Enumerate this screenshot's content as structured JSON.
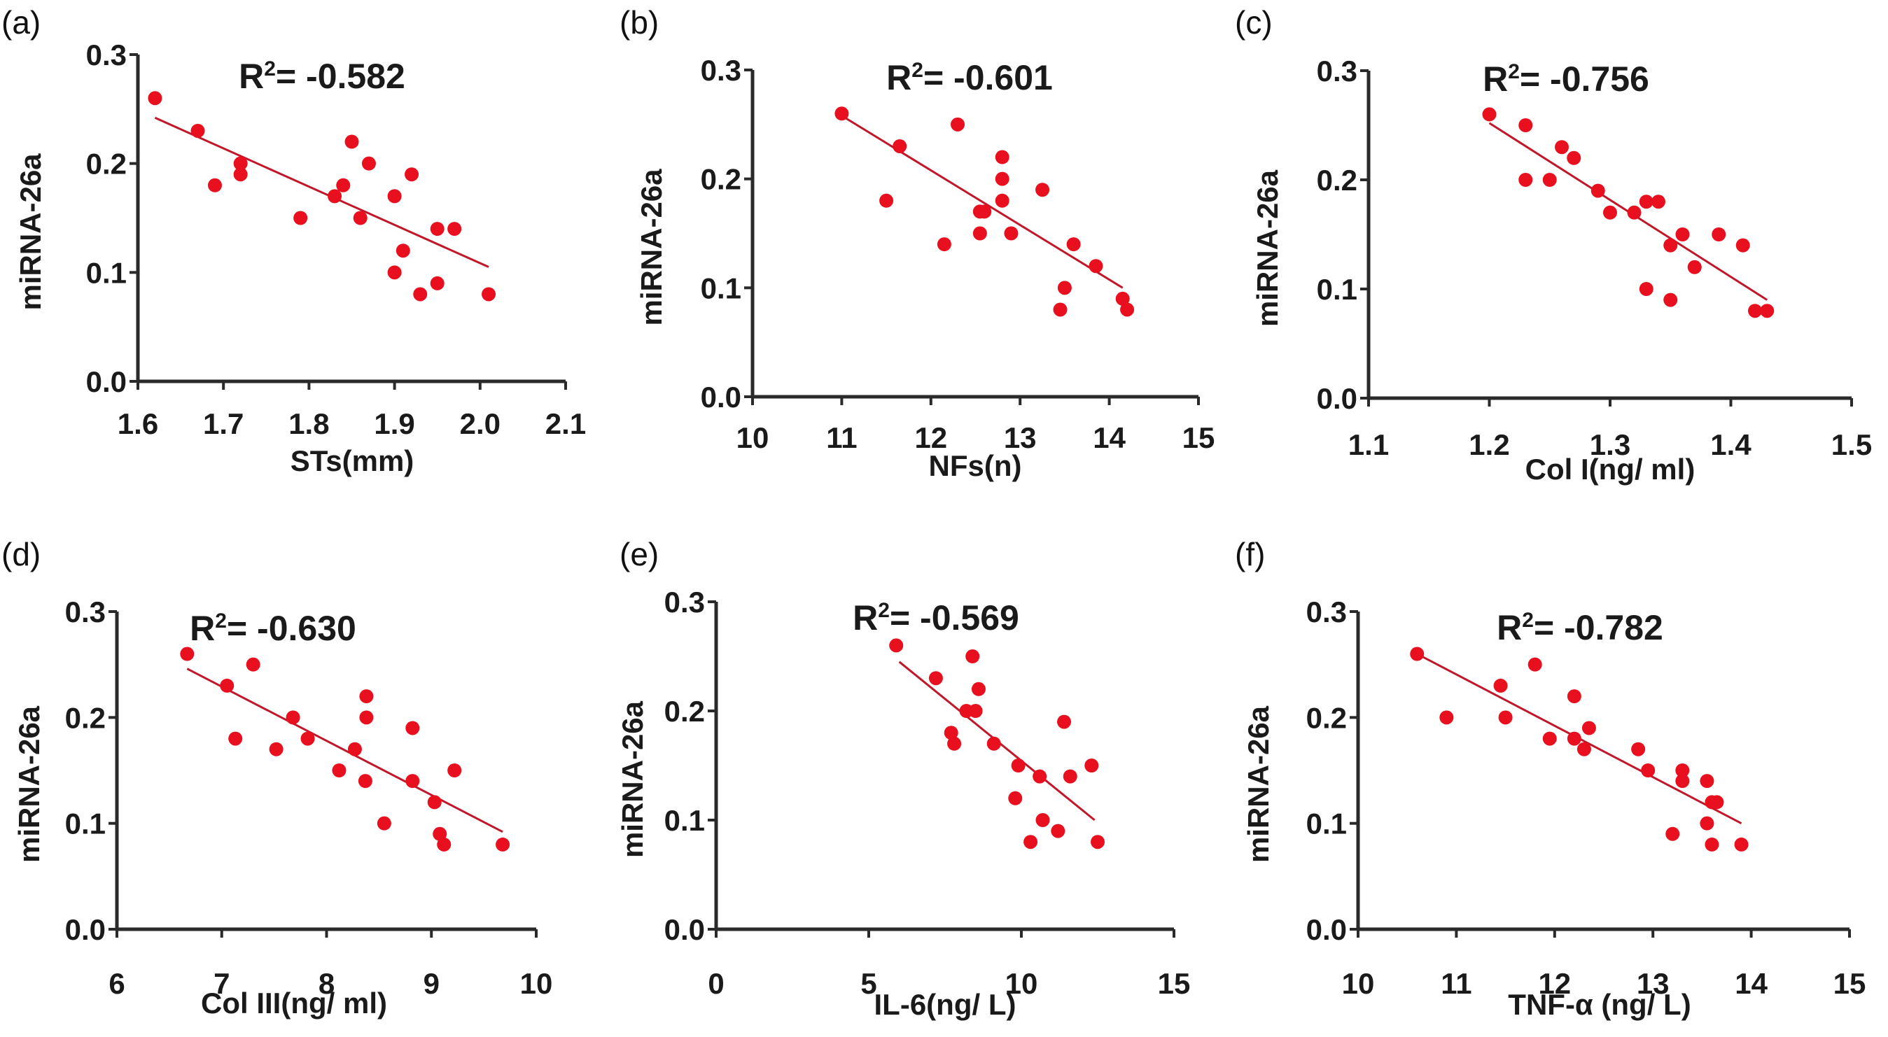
{
  "chart_data": [
    {
      "type": "scatter",
      "panel": "(a)",
      "annotation": "R2= -0.582",
      "annotation_parts": {
        "r": "R",
        "sup": "2",
        "rest": "= -0.582"
      },
      "xlabel": "STs(mm)",
      "ylabel": "miRNA-26a",
      "xlim": [
        1.6,
        2.1
      ],
      "ylim": [
        0.0,
        0.3
      ],
      "xticks": [
        "1.6",
        "1.7",
        "1.8",
        "1.9",
        "2.0",
        "2.1"
      ],
      "xtick_values": [
        1.6,
        1.7,
        1.8,
        1.9,
        2.0,
        2.1
      ],
      "yticks": [
        "0.0",
        "0.1",
        "0.2",
        "0.3"
      ],
      "ytick_values": [
        0.0,
        0.1,
        0.2,
        0.3
      ],
      "points": [
        [
          1.62,
          0.26
        ],
        [
          1.67,
          0.23
        ],
        [
          1.69,
          0.18
        ],
        [
          1.72,
          0.2
        ],
        [
          1.72,
          0.19
        ],
        [
          1.79,
          0.15
        ],
        [
          1.83,
          0.17
        ],
        [
          1.84,
          0.18
        ],
        [
          1.85,
          0.22
        ],
        [
          1.86,
          0.15
        ],
        [
          1.87,
          0.2
        ],
        [
          1.9,
          0.17
        ],
        [
          1.92,
          0.19
        ],
        [
          1.91,
          0.12
        ],
        [
          1.9,
          0.1
        ],
        [
          1.95,
          0.14
        ],
        [
          1.97,
          0.14
        ],
        [
          1.95,
          0.09
        ],
        [
          1.93,
          0.08
        ],
        [
          2.01,
          0.08
        ]
      ],
      "fit_line": [
        [
          1.62,
          0.242
        ],
        [
          2.01,
          0.105
        ]
      ],
      "point_color": "#e8101e",
      "line_color": "#c0182a"
    },
    {
      "type": "scatter",
      "panel": "(b)",
      "annotation": "R2= -0.601",
      "annotation_parts": {
        "r": "R",
        "sup": "2",
        "rest": "= -0.601"
      },
      "xlabel": "NFs(n)",
      "ylabel": "miRNA-26a",
      "xlim": [
        10,
        15
      ],
      "ylim": [
        0.0,
        0.3
      ],
      "xticks": [
        "10",
        "11",
        "12",
        "13",
        "14",
        "15"
      ],
      "xtick_values": [
        10,
        11,
        12,
        13,
        14,
        15
      ],
      "yticks": [
        "0.0",
        "0.1",
        "0.2",
        "0.3"
      ],
      "ytick_values": [
        0.0,
        0.1,
        0.2,
        0.3
      ],
      "points": [
        [
          11.0,
          0.26
        ],
        [
          11.65,
          0.23
        ],
        [
          11.5,
          0.18
        ],
        [
          12.3,
          0.25
        ],
        [
          12.15,
          0.14
        ],
        [
          12.55,
          0.17
        ],
        [
          12.6,
          0.17
        ],
        [
          12.55,
          0.15
        ],
        [
          12.8,
          0.22
        ],
        [
          12.8,
          0.2
        ],
        [
          12.8,
          0.18
        ],
        [
          12.9,
          0.15
        ],
        [
          13.25,
          0.19
        ],
        [
          13.6,
          0.14
        ],
        [
          13.85,
          0.12
        ],
        [
          13.5,
          0.1
        ],
        [
          13.45,
          0.08
        ],
        [
          14.15,
          0.09
        ],
        [
          14.2,
          0.08
        ]
      ],
      "fit_line": [
        [
          11.0,
          0.258
        ],
        [
          14.15,
          0.1
        ]
      ],
      "point_color": "#e8101e",
      "line_color": "#c0182a"
    },
    {
      "type": "scatter",
      "panel": "(c)",
      "annotation": "R2= -0.756",
      "annotation_parts": {
        "r": "R",
        "sup": "2",
        "rest": "= -0.756"
      },
      "xlabel": "Col I(ng/ ml)",
      "ylabel": "miRNA-26a",
      "xlim": [
        1.1,
        1.5
      ],
      "ylim": [
        0.0,
        0.3
      ],
      "xticks": [
        "1.1",
        "1.2",
        "1.3",
        "1.4",
        "1.5"
      ],
      "xtick_values": [
        1.1,
        1.2,
        1.3,
        1.4,
        1.5
      ],
      "yticks": [
        "0.0",
        "0.1",
        "0.2",
        "0.3"
      ],
      "ytick_values": [
        0.0,
        0.1,
        0.2,
        0.3
      ],
      "points": [
        [
          1.2,
          0.26
        ],
        [
          1.23,
          0.25
        ],
        [
          1.23,
          0.2
        ],
        [
          1.25,
          0.2
        ],
        [
          1.26,
          0.23
        ],
        [
          1.27,
          0.22
        ],
        [
          1.29,
          0.19
        ],
        [
          1.3,
          0.17
        ],
        [
          1.32,
          0.17
        ],
        [
          1.33,
          0.18
        ],
        [
          1.34,
          0.18
        ],
        [
          1.36,
          0.15
        ],
        [
          1.35,
          0.14
        ],
        [
          1.37,
          0.12
        ],
        [
          1.39,
          0.15
        ],
        [
          1.41,
          0.14
        ],
        [
          1.33,
          0.1
        ],
        [
          1.35,
          0.09
        ],
        [
          1.42,
          0.08
        ],
        [
          1.43,
          0.08
        ]
      ],
      "fit_line": [
        [
          1.2,
          0.252
        ],
        [
          1.43,
          0.09
        ]
      ],
      "point_color": "#e8101e",
      "line_color": "#c0182a"
    },
    {
      "type": "scatter",
      "panel": "(d)",
      "annotation": "R2= -0.630",
      "annotation_parts": {
        "r": "R",
        "sup": "2",
        "rest": "= -0.630"
      },
      "xlabel": "Col III(ng/ ml)",
      "ylabel": "miRNA-26a",
      "xlim": [
        6,
        10
      ],
      "ylim": [
        0.0,
        0.3
      ],
      "xticks": [
        "6",
        "7",
        "8",
        "9",
        "10"
      ],
      "xtick_values": [
        6,
        7,
        8,
        9,
        10
      ],
      "yticks": [
        "0.0",
        "0.1",
        "0.2",
        "0.3"
      ],
      "ytick_values": [
        0.0,
        0.1,
        0.2,
        0.3
      ],
      "points": [
        [
          6.67,
          0.26
        ],
        [
          7.05,
          0.23
        ],
        [
          7.3,
          0.25
        ],
        [
          7.13,
          0.18
        ],
        [
          7.52,
          0.17
        ],
        [
          7.68,
          0.2
        ],
        [
          7.82,
          0.18
        ],
        [
          8.12,
          0.15
        ],
        [
          8.27,
          0.17
        ],
        [
          8.38,
          0.22
        ],
        [
          8.38,
          0.2
        ],
        [
          8.37,
          0.14
        ],
        [
          8.55,
          0.1
        ],
        [
          8.82,
          0.19
        ],
        [
          8.82,
          0.14
        ],
        [
          9.03,
          0.12
        ],
        [
          9.22,
          0.15
        ],
        [
          9.08,
          0.09
        ],
        [
          9.12,
          0.08
        ],
        [
          9.68,
          0.08
        ]
      ],
      "fit_line": [
        [
          6.67,
          0.246
        ],
        [
          9.68,
          0.092
        ]
      ],
      "point_color": "#e8101e",
      "line_color": "#c0182a"
    },
    {
      "type": "scatter",
      "panel": "(e)",
      "annotation": "R2= -0.569",
      "annotation_parts": {
        "r": "R",
        "sup": "2",
        "rest": "= -0.569"
      },
      "xlabel": "IL-6(ng/ L)",
      "ylabel": "miRNA-26a",
      "xlim": [
        0,
        15
      ],
      "ylim": [
        0.0,
        0.3
      ],
      "xticks": [
        "0",
        "5",
        "10",
        "15"
      ],
      "xtick_values": [
        0,
        5,
        10,
        15
      ],
      "yticks": [
        "0.0",
        "0.1",
        "0.2",
        "0.3"
      ],
      "ytick_values": [
        0.0,
        0.1,
        0.2,
        0.3
      ],
      "points": [
        [
          5.9,
          0.26
        ],
        [
          7.2,
          0.23
        ],
        [
          8.4,
          0.25
        ],
        [
          8.6,
          0.22
        ],
        [
          8.2,
          0.2
        ],
        [
          8.5,
          0.2
        ],
        [
          7.7,
          0.18
        ],
        [
          7.8,
          0.17
        ],
        [
          9.1,
          0.17
        ],
        [
          9.9,
          0.15
        ],
        [
          10.6,
          0.14
        ],
        [
          11.4,
          0.19
        ],
        [
          11.6,
          0.14
        ],
        [
          12.3,
          0.15
        ],
        [
          9.8,
          0.12
        ],
        [
          10.7,
          0.1
        ],
        [
          11.2,
          0.09
        ],
        [
          10.3,
          0.08
        ],
        [
          12.5,
          0.08
        ]
      ],
      "fit_line": [
        [
          6.0,
          0.245
        ],
        [
          12.4,
          0.1
        ]
      ],
      "point_color": "#e8101e",
      "line_color": "#c0182a"
    },
    {
      "type": "scatter",
      "panel": "(f)",
      "annotation": "R2= -0.782",
      "annotation_parts": {
        "r": "R",
        "sup": "2",
        "rest": "= -0.782"
      },
      "xlabel": "TNF-α (ng/ L)",
      "ylabel": "miRNA-26a",
      "xlim": [
        10,
        15
      ],
      "ylim": [
        0.0,
        0.3
      ],
      "xticks": [
        "10",
        "11",
        "12",
        "13",
        "14",
        "15"
      ],
      "xtick_values": [
        10,
        11,
        12,
        13,
        14,
        15
      ],
      "yticks": [
        "0.0",
        "0.1",
        "0.2",
        "0.3"
      ],
      "ytick_values": [
        0.0,
        0.1,
        0.2,
        0.3
      ],
      "points": [
        [
          10.6,
          0.26
        ],
        [
          10.9,
          0.2
        ],
        [
          11.45,
          0.23
        ],
        [
          11.5,
          0.2
        ],
        [
          11.8,
          0.25
        ],
        [
          11.95,
          0.18
        ],
        [
          12.2,
          0.22
        ],
        [
          12.2,
          0.18
        ],
        [
          12.3,
          0.17
        ],
        [
          12.35,
          0.19
        ],
        [
          12.85,
          0.17
        ],
        [
          12.95,
          0.15
        ],
        [
          13.3,
          0.15
        ],
        [
          13.3,
          0.14
        ],
        [
          13.55,
          0.14
        ],
        [
          13.65,
          0.12
        ],
        [
          13.6,
          0.12
        ],
        [
          13.55,
          0.1
        ],
        [
          13.2,
          0.09
        ],
        [
          13.6,
          0.08
        ],
        [
          13.9,
          0.08
        ]
      ],
      "fit_line": [
        [
          10.6,
          0.26
        ],
        [
          13.9,
          0.1
        ]
      ],
      "point_color": "#e8101e",
      "line_color": "#c0182a"
    }
  ]
}
